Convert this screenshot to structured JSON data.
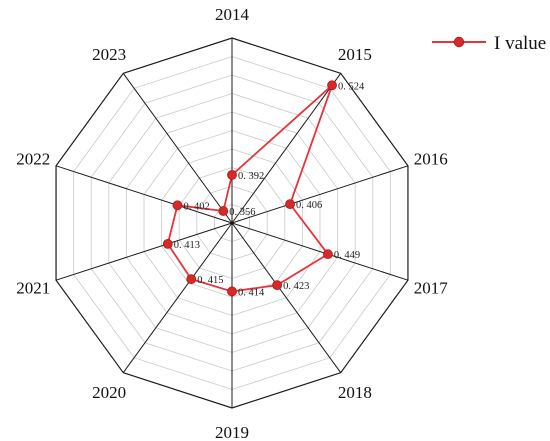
{
  "chart_data": {
    "type": "radar",
    "categories": [
      "2014",
      "2015",
      "2016",
      "2017",
      "2018",
      "2019",
      "2020",
      "2021",
      "2022",
      "2023"
    ],
    "series": [
      {
        "name": "I value",
        "values": [
          0.392,
          0.524,
          0.406,
          0.449,
          0.423,
          0.414,
          0.415,
          0.413,
          0.402,
          0.356
        ],
        "value_labels": [
          "0. 392",
          "0. 524",
          "0. 406",
          "0. 449",
          "0. 423",
          "0. 414",
          "0. 415",
          "0. 413",
          "0. 402",
          "0. 356"
        ]
      }
    ],
    "rlim": [
      0.34,
      0.54
    ],
    "grid": true,
    "legend_position": "top-right",
    "colors": {
      "series": "#e8333a",
      "marker": "#d62a2a",
      "grid": "#c9c9c9",
      "axis": "#1a1a1a"
    }
  }
}
